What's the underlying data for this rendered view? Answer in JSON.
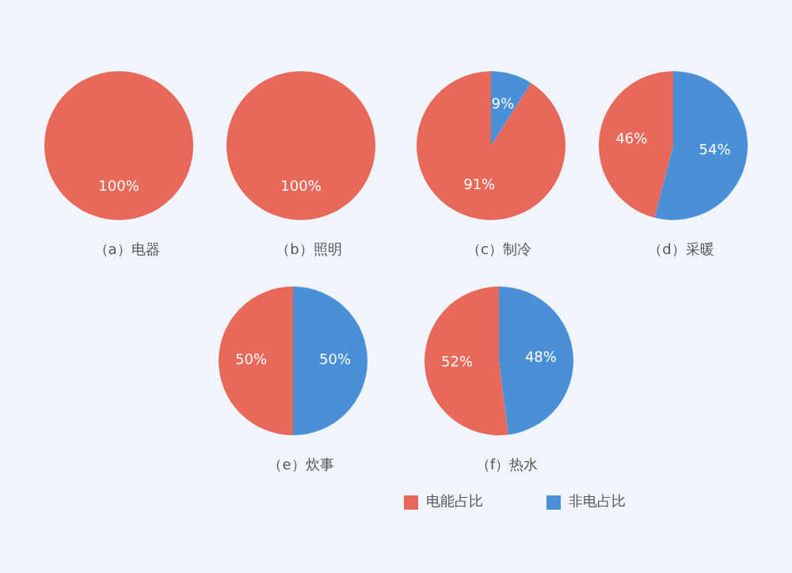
{
  "chart_data": [
    {
      "type": "pie",
      "title": "（a）电器",
      "categories": [
        null,
        null
      ],
      "values": [
        100,
        0
      ],
      "colors": [
        "#e8685a",
        "#4a90d9"
      ],
      "value_labels": [
        "100%",
        null
      ]
    },
    {
      "type": "pie",
      "title": "（b）照明",
      "categories": [
        null,
        null
      ],
      "values": [
        100,
        0
      ],
      "colors": [
        "#e8685a",
        "#4a90d9"
      ],
      "value_labels": [
        "100%",
        null
      ]
    },
    {
      "type": "pie",
      "title": "（c）制冷",
      "categories": [
        null,
        null
      ],
      "values": [
        91,
        9
      ],
      "colors": [
        "#e8685a",
        "#4a90d9"
      ],
      "value_labels": [
        "91%",
        "9%"
      ]
    },
    {
      "type": "pie",
      "title": "（d）采暖",
      "categories": [
        null,
        null
      ],
      "values": [
        46,
        54
      ],
      "colors": [
        "#e8685a",
        "#4a90d9"
      ],
      "value_labels": [
        "46%",
        "54%"
      ]
    },
    {
      "type": "pie",
      "title": "（e）炊事",
      "categories": [
        null,
        null
      ],
      "values": [
        50,
        50
      ],
      "colors": [
        "#e8685a",
        "#4a90d9"
      ],
      "value_labels": [
        "50%",
        "50%"
      ]
    },
    {
      "type": "pie",
      "title": "（f）热水",
      "categories": [
        "电能占比",
        "非电占比"
      ],
      "values": [
        52,
        48
      ],
      "colors": [
        "#e8685a",
        "#4a90d9"
      ],
      "value_labels": [
        "52%",
        "48%"
      ],
      "legend": "bottom"
    }
  ]
}
